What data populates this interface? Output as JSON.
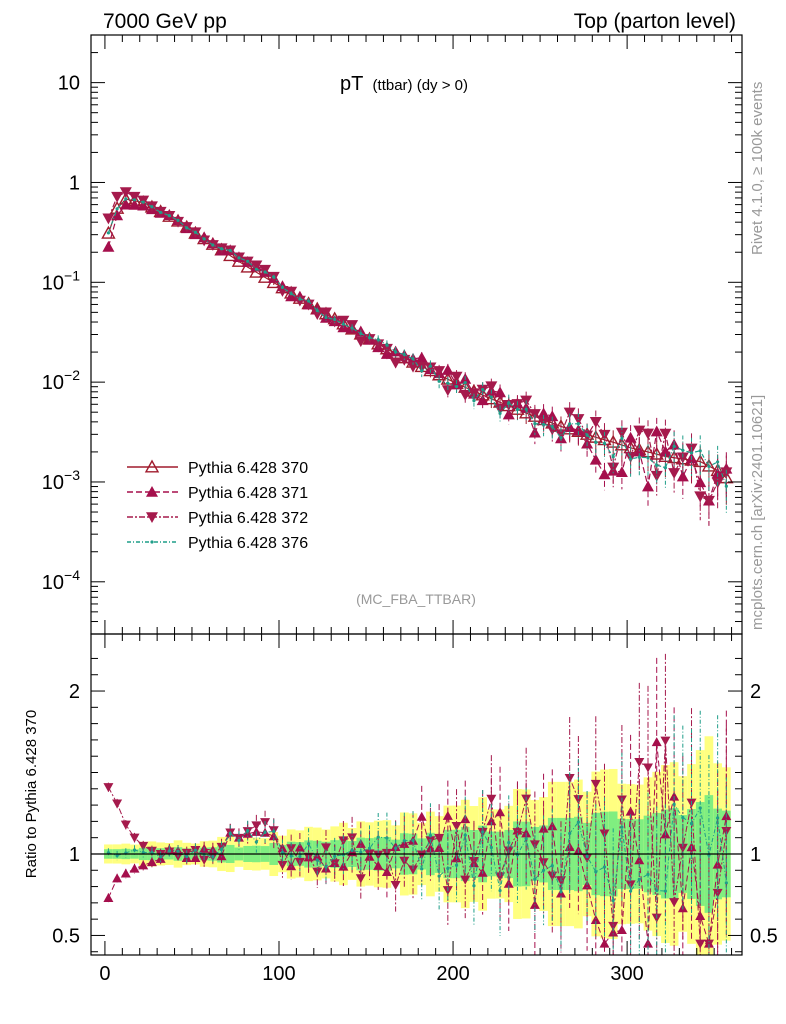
{
  "header": {
    "left": "7000 GeV pp",
    "right": "Top (parton level)"
  },
  "title": {
    "main": "pT",
    "sub": "(ttbar) (dy > 0)"
  },
  "watermark": "(MC_FBA_TTBAR)",
  "side_labels": {
    "upper": "Rivet 4.1.0, ≥ 100k events",
    "lower": "mcplots.cern.ch [arXiv:2401.10621]"
  },
  "colors": {
    "s370": "#a01b2d",
    "s371": "#a50f4c",
    "s372": "#a51a4c",
    "s376": "#1f9e89",
    "band_yellow": "#ffff80",
    "band_green": "#80ee80"
  },
  "chart_data": [
    {
      "type": "line",
      "panel": "main",
      "yscale": "log",
      "xlim": [
        -8,
        366
      ],
      "ylim": [
        3e-05,
        30
      ],
      "y_ticks": [
        {
          "value": 10,
          "base": "10",
          "exp": ""
        },
        {
          "value": 1,
          "base": "1",
          "exp": ""
        },
        {
          "value": 0.1,
          "base": "10",
          "exp": "−1"
        },
        {
          "value": 0.01,
          "base": "10",
          "exp": "−2"
        },
        {
          "value": 0.001,
          "base": "10",
          "exp": "−3"
        },
        {
          "value": 0.0001,
          "base": "10",
          "exp": "−4"
        }
      ],
      "legend_position": "bottom-left",
      "series": [
        {
          "name": "Pythia 6.428 370",
          "key": "s370",
          "marker": "triangle-up-open",
          "dash": ""
        },
        {
          "name": "Pythia 6.428 371",
          "key": "s371",
          "marker": "triangle-up-filled",
          "dash": "6,3"
        },
        {
          "name": "Pythia 6.428 372",
          "key": "s372",
          "marker": "triangle-down-filled",
          "dash": "6,2,2,2"
        },
        {
          "name": "Pythia 6.428 376",
          "key": "s376",
          "marker": "dot",
          "dash": "4,2,1,2"
        }
      ],
      "reference_curve": {
        "description": "Pythia 6.428 370 pT spectrum (per bin, every ~10 GeV)",
        "x": [
          2,
          7,
          12,
          22,
          32,
          42,
          52,
          62,
          72,
          82,
          92,
          102,
          112,
          122,
          132,
          142,
          152,
          162,
          172,
          182,
          192,
          202,
          212,
          222,
          232,
          242,
          252,
          262,
          272,
          282,
          292,
          302,
          312,
          322,
          332,
          342,
          352,
          357
        ],
        "y": [
          0.31,
          0.55,
          0.68,
          0.63,
          0.51,
          0.41,
          0.31,
          0.24,
          0.185,
          0.142,
          0.112,
          0.088,
          0.069,
          0.054,
          0.043,
          0.034,
          0.027,
          0.0215,
          0.0175,
          0.0143,
          0.0118,
          0.0097,
          0.0081,
          0.0068,
          0.0058,
          0.0049,
          0.0042,
          0.0036,
          0.0032,
          0.0028,
          0.0025,
          0.0022,
          0.002,
          0.0018,
          0.0017,
          0.0016,
          0.0013,
          0.0011
        ]
      }
    },
    {
      "type": "line",
      "panel": "ratio",
      "ylabel": "Ratio to Pythia 6.428 370",
      "xlim": [
        -8,
        366
      ],
      "ylim": [
        0.38,
        2.35
      ],
      "y_ticks": [
        0.5,
        1,
        2
      ],
      "x_ticks": [
        0,
        100,
        200,
        300
      ],
      "reference_line": 1,
      "series_ratio_371_start": {
        "x": [
          2,
          7,
          12,
          17,
          22,
          27,
          32
        ],
        "y": [
          0.73,
          0.85,
          0.88,
          0.91,
          0.93,
          0.95,
          0.97
        ]
      },
      "series_ratio_372_start": {
        "x": [
          2,
          7,
          12,
          17,
          22,
          27,
          32
        ],
        "y": [
          1.41,
          1.31,
          1.18,
          1.1,
          1.05,
          1.02,
          1.0
        ]
      }
    }
  ]
}
